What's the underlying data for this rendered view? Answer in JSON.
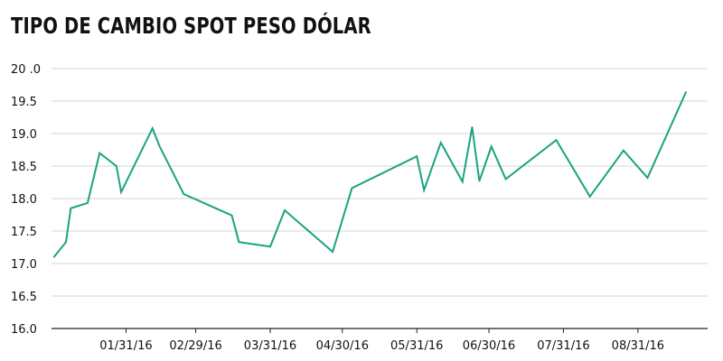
{
  "title": "TIPO DE CAMBIO SPOT PESO DÓLAR",
  "colors": {
    "line": "#1aa37f",
    "grid": "#d6d6d6",
    "axis": "#222222",
    "text": "#111111"
  },
  "chart_data": {
    "type": "line",
    "title": "TIPO DE CAMBIO SPOT PESO DÓLAR",
    "xlabel": "",
    "ylabel": "",
    "ylim": [
      16.0,
      20.0
    ],
    "xlim": [
      "2015-12-31",
      "2016-09-29"
    ],
    "grid": true,
    "y_ticks": [
      16.0,
      16.5,
      17.0,
      17.5,
      18.0,
      18.5,
      19.0,
      19.5,
      20.0
    ],
    "y_tick_labels": [
      "16.0",
      "16.5",
      "17.0",
      "17.5",
      "18.0",
      "18.5",
      "19.0",
      "19.5",
      "20 .0"
    ],
    "x_ticks": [
      "2016-01-31",
      "2016-02-29",
      "2016-03-31",
      "2016-04-30",
      "2016-05-31",
      "2016-06-30",
      "2016-07-31",
      "2016-08-31"
    ],
    "x_tick_labels": [
      "01/31/16",
      "02/29/16",
      "03/31/16",
      "04/30/16",
      "05/31/16",
      "06/30/16",
      "07/31/16",
      "08/31/16"
    ],
    "series": [
      {
        "x": [
          "2016-01-01",
          "2016-01-06",
          "2016-01-08",
          "2016-01-15",
          "2016-01-20",
          "2016-01-27",
          "2016-01-29",
          "2016-02-11",
          "2016-02-14",
          "2016-02-24",
          "2016-03-15",
          "2016-03-18",
          "2016-03-31",
          "2016-04-06",
          "2016-04-26",
          "2016-05-04",
          "2016-05-31",
          "2016-06-03",
          "2016-06-10",
          "2016-06-19",
          "2016-06-23",
          "2016-06-26",
          "2016-07-01",
          "2016-07-07",
          "2016-07-28",
          "2016-08-11",
          "2016-08-25",
          "2016-09-04",
          "2016-09-20"
        ],
        "values": [
          17.1,
          17.33,
          17.85,
          17.93,
          18.7,
          18.5,
          18.1,
          19.08,
          18.8,
          18.07,
          17.74,
          17.33,
          17.26,
          17.82,
          17.18,
          18.16,
          18.65,
          18.13,
          18.86,
          18.26,
          19.1,
          18.27,
          18.8,
          18.3,
          18.9,
          18.03,
          18.74,
          18.32,
          19.64
        ]
      }
    ]
  }
}
